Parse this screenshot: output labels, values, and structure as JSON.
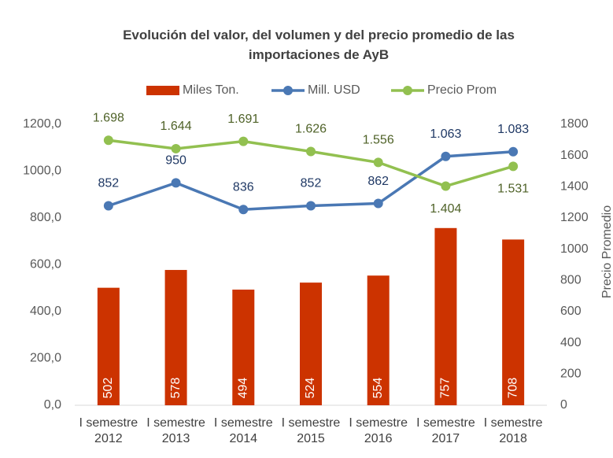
{
  "chart_data": {
    "type": "bar-line",
    "title": "Evolución del valor, del volumen y del precio promedio de las importaciones de AyB",
    "y2label": "Precio Promedio",
    "categories": [
      "I semestre 2012",
      "I semestre 2013",
      "I semestre 2014",
      "I semestre 2015",
      "I semestre 2016",
      "I semestre 2017",
      "I semestre 2018"
    ],
    "series": [
      {
        "name": "Miles Ton.",
        "type": "bar",
        "color": "#cc3300",
        "values": [
          502,
          578,
          494,
          524,
          554,
          757,
          708
        ]
      },
      {
        "name": "Mill. USD",
        "type": "line",
        "color": "#4a78b4",
        "values": [
          852,
          950,
          836,
          852,
          862,
          1063,
          1083
        ],
        "value_labels": [
          "852",
          "950",
          "836",
          "852",
          "862",
          "1.063",
          "1.083"
        ]
      },
      {
        "name": "Precio Prom",
        "type": "line",
        "axis": "y2",
        "color": "#92c050",
        "values": [
          1698,
          1644,
          1691,
          1626,
          1556,
          1404,
          1531
        ],
        "value_labels": [
          "1.698",
          "1.644",
          "1.691",
          "1.626",
          "1.556",
          "1.404",
          "1.531"
        ]
      }
    ],
    "ylim": [
      0,
      1200
    ],
    "yticks": [
      {
        "value": 0,
        "label": "0,0"
      },
      {
        "value": 200,
        "label": "200,0"
      },
      {
        "value": 400,
        "label": "400,0"
      },
      {
        "value": 600,
        "label": "600,0"
      },
      {
        "value": 800,
        "label": "800,0"
      },
      {
        "value": 1000,
        "label": "1000,0"
      },
      {
        "value": 1200,
        "label": "1200,0"
      }
    ],
    "y2lim": [
      0,
      1800
    ],
    "y2ticks": [
      0,
      200,
      400,
      600,
      800,
      1000,
      1200,
      1400,
      1600,
      1800
    ],
    "grid": false,
    "legend": "top"
  }
}
